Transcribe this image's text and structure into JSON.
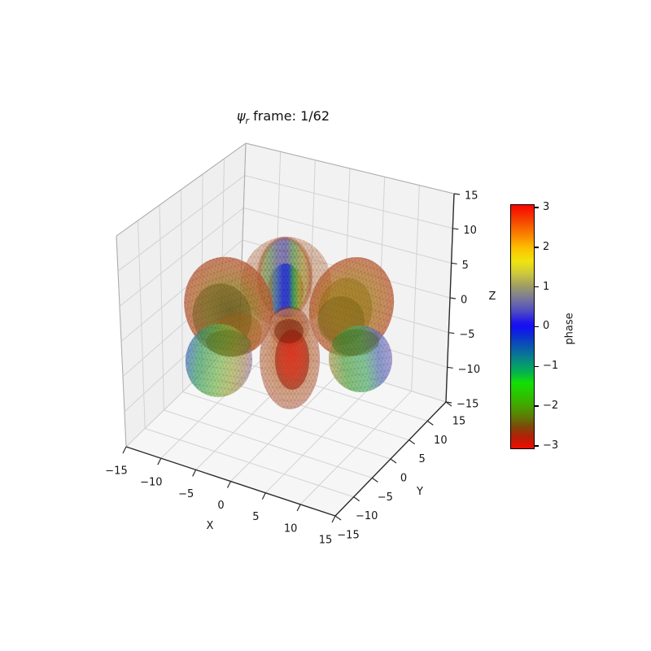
{
  "title": {
    "psi": "ψ",
    "sub": "r",
    "rest": " frame: 1/62"
  },
  "chart_data": {
    "type": "3d-surface",
    "title": "ψ_r frame: 1/62",
    "frame_label": "1/62",
    "grid": true,
    "axes": {
      "x": {
        "label": "X",
        "range": [
          -15,
          15
        ],
        "tick_labels": [
          "−15",
          "−10",
          "−5",
          "0",
          "5",
          "10",
          "15"
        ]
      },
      "y": {
        "label": "Y",
        "range": [
          -15,
          15
        ],
        "tick_labels": [
          "−15",
          "−10",
          "−5",
          "0",
          "5",
          "10",
          "15"
        ]
      },
      "z": {
        "label": "Z",
        "range": [
          -15,
          15
        ],
        "tick_labels": [
          "−15",
          "−10",
          "−5",
          "0",
          "5",
          "10",
          "15"
        ]
      }
    },
    "colorbar": {
      "label": "phase",
      "tick_labels_top_to_bottom": [
        "3",
        "2",
        "1",
        "0",
        "−1",
        "−2",
        "−3"
      ],
      "range": [
        -3.14159,
        3.14159
      ],
      "gradient_top_to_bottom": [
        [
          "0%",
          "#fa0400"
        ],
        [
          "6%",
          "#f54100"
        ],
        [
          "12%",
          "#fa8000"
        ],
        [
          "18%",
          "#fcc300"
        ],
        [
          "23%",
          "#f0e40e"
        ],
        [
          "28%",
          "#cec93c"
        ],
        [
          "33%",
          "#a19f62"
        ],
        [
          "39%",
          "#7473a0"
        ],
        [
          "44%",
          "#4b48c4"
        ],
        [
          "48%",
          "#2318e8"
        ],
        [
          "50%",
          "#140ff6"
        ],
        [
          "53%",
          "#0d28d8"
        ],
        [
          "58%",
          "#0a56b0"
        ],
        [
          "64%",
          "#078c80"
        ],
        [
          "69%",
          "#05b54a"
        ],
        [
          "73%",
          "#12e006"
        ],
        [
          "78%",
          "#2cc400"
        ],
        [
          "83%",
          "#46a000"
        ],
        [
          "87%",
          "#5d7a06"
        ],
        [
          "91%",
          "#7e4a0a"
        ],
        [
          "95%",
          "#b02206"
        ],
        [
          "100%",
          "#ef0d00"
        ]
      ]
    },
    "surface": {
      "description": "Multi-lobed wavefunction isosurface with triangular wireframe, colored by complex phase",
      "lobes": [
        {
          "position": "top center",
          "phase_colors": "blue core, green band, olive/yellow shell, red rim"
        },
        {
          "position": "back top",
          "phase_colors": "orange-brown"
        },
        {
          "position": "left",
          "phase_colors": "dark olive core, orange mid, salmon-red rim"
        },
        {
          "position": "right",
          "phase_colors": "olive-green core, orange mid, salmon-red rim"
        },
        {
          "position": "lower left",
          "phase_colors": "green-yellow core, cyan-blue outer edge, purple tint"
        },
        {
          "position": "lower right",
          "phase_colors": "green core, blue-purple outer edge"
        },
        {
          "position": "bottom center front",
          "phase_colors": "bright red core, orange shell, pink-salmon rim"
        }
      ]
    }
  }
}
